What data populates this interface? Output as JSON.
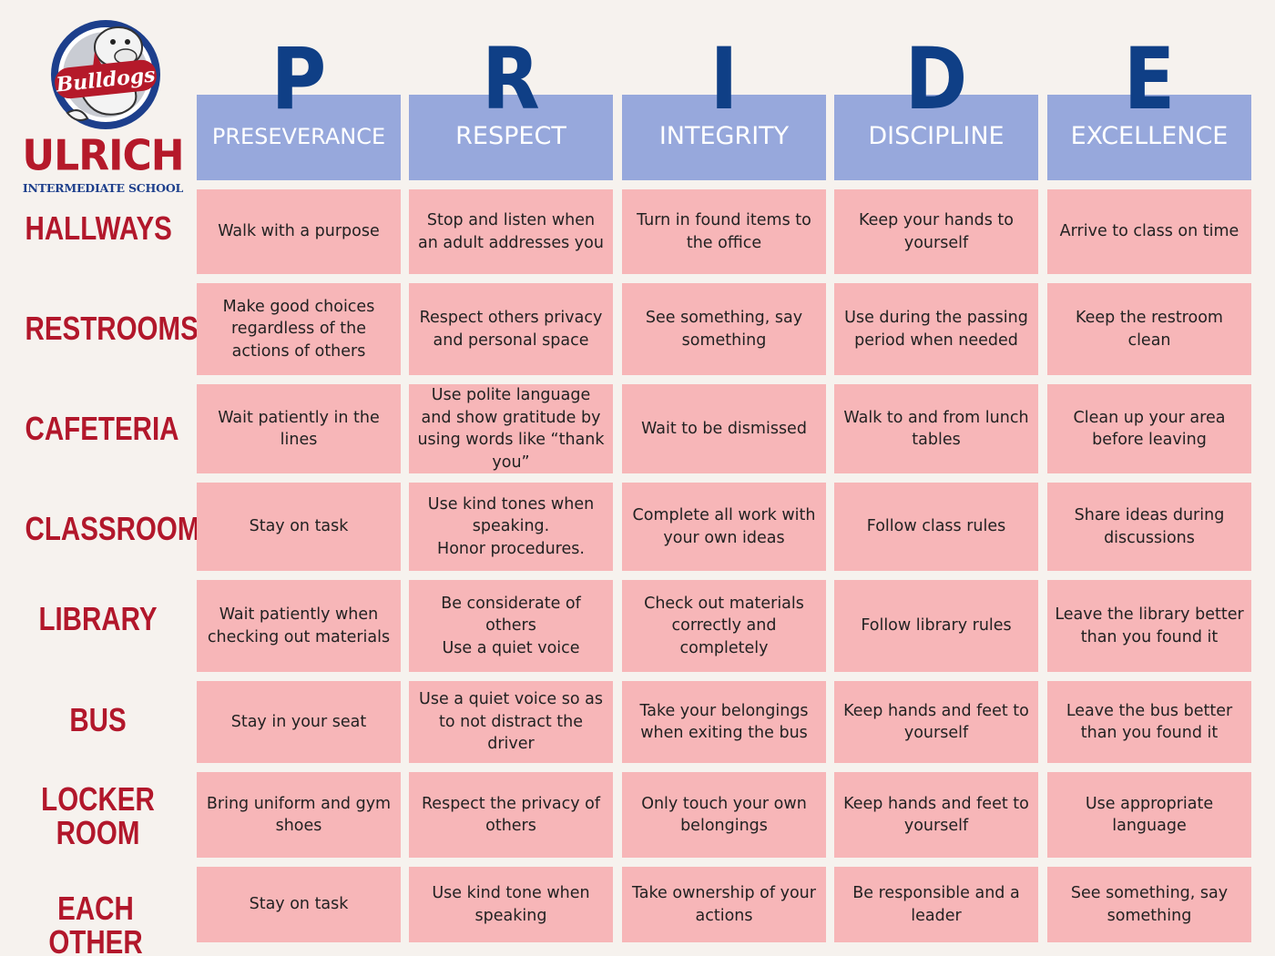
{
  "logo": {
    "script_text": "Bulldogs",
    "school_name": "ULRICH",
    "school_sub": "INTERMEDIATE SCHOOL"
  },
  "columns": [
    {
      "letter": "P",
      "label": "PRESEVERANCE"
    },
    {
      "letter": "R",
      "label": "RESPECT"
    },
    {
      "letter": "I",
      "label": "INTEGRITY"
    },
    {
      "letter": "D",
      "label": "DISCIPLINE"
    },
    {
      "letter": "E",
      "label": "EXCELLENCE"
    }
  ],
  "rows": [
    {
      "label": "HALLWAYS",
      "cells": [
        "Walk with a purpose",
        "Stop and listen when an adult addresses you",
        "Turn in found items to the office",
        "Keep your hands to yourself",
        "Arrive to class on time"
      ]
    },
    {
      "label": "RESTROOMS",
      "cells": [
        "Make good choices regardless of the actions of others",
        "Respect others privacy and personal space",
        "See something, say something",
        "Use during the passing period when needed",
        "Keep the restroom clean"
      ]
    },
    {
      "label": "CAFETERIA",
      "cells": [
        "Wait patiently in the lines",
        "Use polite language and show gratitude by using words like “thank you”",
        "Wait to be dismissed",
        "Walk to and from lunch tables",
        "Clean up your area before leaving"
      ]
    },
    {
      "label": "CLASSROOM",
      "cells": [
        "Stay on task",
        "Use kind tones when speaking.\nHonor procedures.",
        "Complete all work with your own ideas",
        "Follow class rules",
        "Share ideas during discussions"
      ]
    },
    {
      "label": "LIBRARY",
      "cells": [
        "Wait patiently when checking out materials",
        "Be considerate of others\nUse a quiet voice",
        "Check out materials correctly and completely",
        "Follow library rules",
        "Leave the library better than you found it"
      ]
    },
    {
      "label": "BUS",
      "cells": [
        "Stay in your seat",
        "Use a quiet voice so as to not distract the driver",
        "Take your belongings when exiting the bus",
        "Keep hands and feet to yourself",
        "Leave the bus better than you found it"
      ]
    },
    {
      "label": "LOCKER\nROOM",
      "cells": [
        "Bring uniform and gym shoes",
        "Respect the privacy of others",
        "Only touch your own belongings",
        "Keep hands and feet to yourself",
        "Use appropriate language"
      ]
    },
    {
      "label": "EACH OTHER",
      "cells": [
        "Stay on task",
        "Use kind tone when speaking",
        "Take ownership of your actions",
        "Be responsible and a leader",
        "See something, say something"
      ]
    }
  ],
  "colors": {
    "header_fill": "#97a8dc",
    "cell_fill": "#f7b6b8",
    "letter_color": "#0f3f86",
    "row_label_color": "#b2172b",
    "background": "#f6f2ee"
  }
}
